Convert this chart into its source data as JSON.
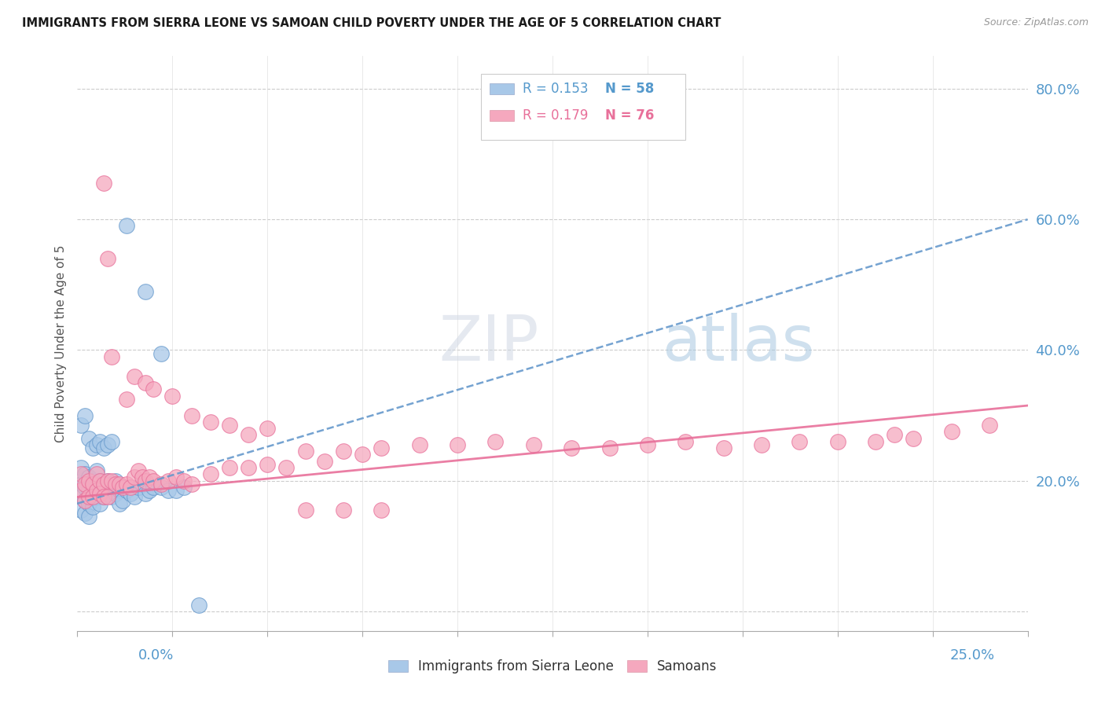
{
  "title": "IMMIGRANTS FROM SIERRA LEONE VS SAMOAN CHILD POVERTY UNDER THE AGE OF 5 CORRELATION CHART",
  "source": "Source: ZipAtlas.com",
  "ylabel": "Child Poverty Under the Age of 5",
  "xmin": 0.0,
  "xmax": 0.25,
  "ymin": -0.03,
  "ymax": 0.85,
  "color_sierra": "#a8c8e8",
  "color_samoan": "#f5a8be",
  "color_blue_text": "#5599cc",
  "color_pink_text": "#e8709a",
  "color_blue_line": "#6699cc",
  "color_pink_line": "#e8709a",
  "watermark_color": "#ccddef",
  "sl_trend_y0": 0.165,
  "sl_trend_y1": 0.6,
  "sa_trend_y0": 0.175,
  "sa_trend_y1": 0.315,
  "sierra_x": [
    0.001,
    0.001,
    0.001,
    0.001,
    0.002,
    0.002,
    0.002,
    0.002,
    0.003,
    0.003,
    0.003,
    0.003,
    0.004,
    0.004,
    0.004,
    0.005,
    0.005,
    0.005,
    0.006,
    0.006,
    0.006,
    0.007,
    0.007,
    0.008,
    0.008,
    0.009,
    0.009,
    0.01,
    0.01,
    0.011,
    0.011,
    0.012,
    0.012,
    0.013,
    0.014,
    0.015,
    0.016,
    0.017,
    0.018,
    0.019,
    0.02,
    0.022,
    0.024,
    0.026,
    0.028,
    0.001,
    0.002,
    0.003,
    0.004,
    0.005,
    0.006,
    0.007,
    0.008,
    0.009,
    0.013,
    0.018,
    0.022,
    0.032
  ],
  "sierra_y": [
    0.22,
    0.195,
    0.175,
    0.155,
    0.21,
    0.19,
    0.17,
    0.15,
    0.205,
    0.185,
    0.165,
    0.145,
    0.2,
    0.18,
    0.16,
    0.215,
    0.195,
    0.175,
    0.2,
    0.185,
    0.165,
    0.195,
    0.175,
    0.2,
    0.18,
    0.195,
    0.175,
    0.2,
    0.18,
    0.185,
    0.165,
    0.19,
    0.17,
    0.185,
    0.18,
    0.175,
    0.19,
    0.195,
    0.18,
    0.185,
    0.19,
    0.19,
    0.185,
    0.185,
    0.19,
    0.285,
    0.3,
    0.265,
    0.25,
    0.255,
    0.26,
    0.25,
    0.255,
    0.26,
    0.59,
    0.49,
    0.395,
    0.01
  ],
  "samoan_x": [
    0.001,
    0.001,
    0.002,
    0.002,
    0.003,
    0.003,
    0.004,
    0.004,
    0.005,
    0.005,
    0.006,
    0.006,
    0.007,
    0.007,
    0.008,
    0.008,
    0.009,
    0.01,
    0.011,
    0.012,
    0.013,
    0.014,
    0.015,
    0.016,
    0.017,
    0.018,
    0.019,
    0.02,
    0.022,
    0.024,
    0.026,
    0.028,
    0.03,
    0.035,
    0.04,
    0.045,
    0.05,
    0.055,
    0.06,
    0.065,
    0.07,
    0.075,
    0.08,
    0.09,
    0.1,
    0.11,
    0.12,
    0.13,
    0.14,
    0.15,
    0.16,
    0.17,
    0.18,
    0.19,
    0.2,
    0.21,
    0.215,
    0.22,
    0.23,
    0.24,
    0.007,
    0.008,
    0.009,
    0.013,
    0.015,
    0.018,
    0.02,
    0.025,
    0.03,
    0.035,
    0.04,
    0.045,
    0.05,
    0.06,
    0.07,
    0.08
  ],
  "samoan_y": [
    0.21,
    0.185,
    0.195,
    0.17,
    0.2,
    0.175,
    0.195,
    0.175,
    0.21,
    0.185,
    0.2,
    0.18,
    0.195,
    0.175,
    0.2,
    0.175,
    0.2,
    0.195,
    0.195,
    0.19,
    0.195,
    0.19,
    0.205,
    0.215,
    0.205,
    0.2,
    0.205,
    0.2,
    0.195,
    0.2,
    0.205,
    0.2,
    0.195,
    0.21,
    0.22,
    0.22,
    0.225,
    0.22,
    0.245,
    0.23,
    0.245,
    0.24,
    0.25,
    0.255,
    0.255,
    0.26,
    0.255,
    0.25,
    0.25,
    0.255,
    0.26,
    0.25,
    0.255,
    0.26,
    0.26,
    0.26,
    0.27,
    0.265,
    0.275,
    0.285,
    0.655,
    0.54,
    0.39,
    0.325,
    0.36,
    0.35,
    0.34,
    0.33,
    0.3,
    0.29,
    0.285,
    0.27,
    0.28,
    0.155,
    0.155,
    0.155
  ]
}
